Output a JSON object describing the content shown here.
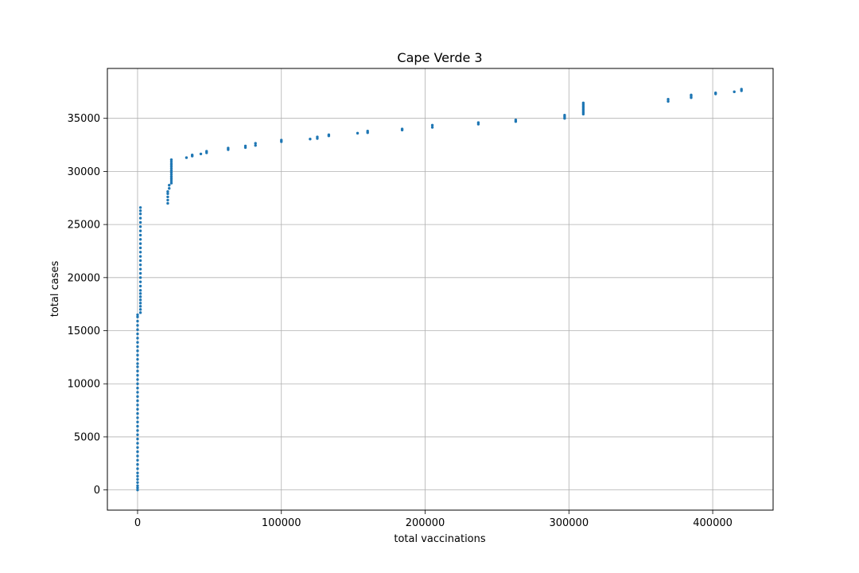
{
  "chart_data": {
    "type": "scatter",
    "title": "Cape Verde 3",
    "xlabel": "total vaccinations",
    "ylabel": "total cases",
    "xlim": [
      -21000,
      442000
    ],
    "ylim": [
      -1900,
      39700
    ],
    "xticks": [
      0,
      100000,
      200000,
      300000,
      400000
    ],
    "yticks": [
      0,
      5000,
      10000,
      15000,
      20000,
      25000,
      30000,
      35000
    ],
    "grid": true,
    "legend": "none",
    "marker_color": "#1f77b4",
    "series": [
      {
        "points": [
          [
            0,
            0
          ],
          [
            0,
            200
          ],
          [
            0,
            400
          ],
          [
            0,
            700
          ],
          [
            0,
            1000
          ],
          [
            0,
            1300
          ],
          [
            0,
            1600
          ],
          [
            0,
            2000
          ],
          [
            0,
            2400
          ],
          [
            0,
            2800
          ],
          [
            0,
            3200
          ],
          [
            0,
            3600
          ],
          [
            0,
            4000
          ],
          [
            0,
            4400
          ],
          [
            0,
            4800
          ],
          [
            0,
            5200
          ],
          [
            0,
            5600
          ],
          [
            0,
            6000
          ],
          [
            0,
            6400
          ],
          [
            0,
            6800
          ],
          [
            0,
            7200
          ],
          [
            0,
            7600
          ],
          [
            0,
            8000
          ],
          [
            0,
            8400
          ],
          [
            0,
            8800
          ],
          [
            0,
            9200
          ],
          [
            0,
            9600
          ],
          [
            0,
            10000
          ],
          [
            0,
            10400
          ],
          [
            0,
            10800
          ],
          [
            0,
            11200
          ],
          [
            0,
            11600
          ],
          [
            0,
            11900
          ],
          [
            0,
            12300
          ],
          [
            0,
            12700
          ],
          [
            0,
            13100
          ],
          [
            0,
            13500
          ],
          [
            0,
            13900
          ],
          [
            0,
            14300
          ],
          [
            0,
            14700
          ],
          [
            0,
            15100
          ],
          [
            0,
            15500
          ],
          [
            0,
            15900
          ],
          [
            0,
            16300
          ],
          [
            0,
            16500
          ],
          [
            2000,
            16700
          ],
          [
            2000,
            17000
          ],
          [
            2000,
            17300
          ],
          [
            2000,
            17600
          ],
          [
            2000,
            17900
          ],
          [
            2000,
            18200
          ],
          [
            2000,
            18500
          ],
          [
            2000,
            18800
          ],
          [
            2000,
            19200
          ],
          [
            2000,
            19600
          ],
          [
            2000,
            20000
          ],
          [
            2000,
            20400
          ],
          [
            2000,
            20800
          ],
          [
            2000,
            21200
          ],
          [
            2000,
            21600
          ],
          [
            2000,
            22000
          ],
          [
            2000,
            22400
          ],
          [
            2000,
            22800
          ],
          [
            2000,
            23200
          ],
          [
            2000,
            23600
          ],
          [
            2000,
            24000
          ],
          [
            2000,
            24400
          ],
          [
            2000,
            24800
          ],
          [
            2000,
            25200
          ],
          [
            2000,
            25600
          ],
          [
            2000,
            26000
          ],
          [
            2000,
            26300
          ],
          [
            2000,
            26600
          ],
          [
            21000,
            27000
          ],
          [
            21000,
            27300
          ],
          [
            21000,
            27600
          ],
          [
            21000,
            27900
          ],
          [
            21000,
            28100
          ],
          [
            22000,
            28400
          ],
          [
            22000,
            28700
          ],
          [
            23500,
            28900
          ],
          [
            23500,
            29100
          ],
          [
            23500,
            29300
          ],
          [
            23500,
            29500
          ],
          [
            23500,
            29700
          ],
          [
            23500,
            29900
          ],
          [
            23500,
            30100
          ],
          [
            23500,
            30300
          ],
          [
            23500,
            30500
          ],
          [
            23500,
            30700
          ],
          [
            23500,
            30900
          ],
          [
            23500,
            31100
          ],
          [
            34000,
            31300
          ],
          [
            38000,
            31450
          ],
          [
            38000,
            31550
          ],
          [
            44000,
            31650
          ],
          [
            48000,
            31750
          ],
          [
            48000,
            31900
          ],
          [
            63000,
            32050
          ],
          [
            63000,
            32200
          ],
          [
            75000,
            32250
          ],
          [
            75000,
            32400
          ],
          [
            82000,
            32450
          ],
          [
            82000,
            32650
          ],
          [
            100000,
            32800
          ],
          [
            100000,
            32950
          ],
          [
            120000,
            33050
          ],
          [
            125000,
            33100
          ],
          [
            125000,
            33250
          ],
          [
            133000,
            33350
          ],
          [
            133000,
            33450
          ],
          [
            153000,
            33600
          ],
          [
            160000,
            33650
          ],
          [
            160000,
            33800
          ],
          [
            184000,
            33900
          ],
          [
            184000,
            34000
          ],
          [
            205000,
            34150
          ],
          [
            205000,
            34350
          ],
          [
            237000,
            34450
          ],
          [
            237000,
            34600
          ],
          [
            263000,
            34700
          ],
          [
            263000,
            34850
          ],
          [
            297000,
            35000
          ],
          [
            297000,
            35150
          ],
          [
            297000,
            35300
          ],
          [
            310000,
            35400
          ],
          [
            310000,
            35550
          ],
          [
            310000,
            35700
          ],
          [
            310000,
            35850
          ],
          [
            310000,
            36000
          ],
          [
            310000,
            36150
          ],
          [
            310000,
            36300
          ],
          [
            310000,
            36450
          ],
          [
            369000,
            36600
          ],
          [
            369000,
            36800
          ],
          [
            385000,
            36950
          ],
          [
            385000,
            37100
          ],
          [
            385000,
            37200
          ],
          [
            402000,
            37300
          ],
          [
            402000,
            37400
          ],
          [
            415000,
            37500
          ],
          [
            420000,
            37600
          ],
          [
            420000,
            37750
          ]
        ]
      }
    ]
  }
}
